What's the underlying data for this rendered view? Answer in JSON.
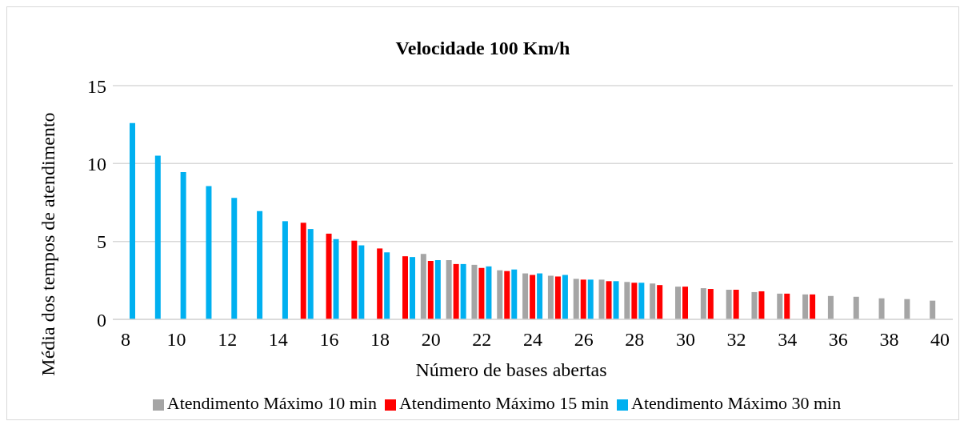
{
  "chart_data": {
    "type": "bar",
    "title": "Velocidade 100 Km/h",
    "xlabel": "Número de bases abertas",
    "ylabel": "Média dos tempos de atendimento",
    "categories": [
      "8",
      null,
      "10",
      null,
      "12",
      null,
      "14",
      null,
      "16",
      null,
      "18",
      null,
      "20",
      null,
      "22",
      null,
      "24",
      null,
      "26",
      null,
      "28",
      null,
      "30",
      null,
      "32",
      null,
      "34",
      null,
      "36",
      null,
      "38",
      null,
      "40"
    ],
    "series": [
      {
        "name": "Atendimento Máximo 10 min",
        "color": "#a5a5a5",
        "values": [
          null,
          null,
          null,
          null,
          null,
          null,
          null,
          null,
          null,
          null,
          null,
          null,
          4.2,
          3.8,
          3.5,
          3.15,
          2.95,
          2.8,
          2.6,
          2.55,
          2.4,
          2.3,
          2.1,
          2.0,
          1.9,
          1.75,
          1.65,
          1.6,
          1.5,
          1.45,
          1.35,
          1.3,
          1.2
        ]
      },
      {
        "name": "Atendimento Máximo 15 min",
        "color": "#ff0000",
        "values": [
          null,
          null,
          null,
          null,
          null,
          null,
          null,
          6.2,
          5.5,
          5.05,
          4.55,
          4.05,
          3.75,
          3.55,
          3.3,
          3.1,
          2.85,
          2.75,
          2.55,
          2.45,
          2.35,
          2.2,
          2.1,
          1.95,
          1.9,
          1.8,
          1.65,
          1.6,
          null,
          null,
          null,
          null,
          null
        ]
      },
      {
        "name": "Atendimento Máximo 30 min",
        "color": "#00b0f0",
        "values": [
          12.6,
          10.5,
          9.45,
          8.55,
          7.8,
          6.95,
          6.3,
          5.8,
          5.15,
          4.75,
          4.3,
          4.0,
          3.8,
          3.55,
          3.4,
          3.2,
          2.95,
          2.85,
          2.55,
          2.45,
          2.35,
          null,
          null,
          null,
          null,
          null,
          null,
          null,
          null,
          null,
          null,
          null,
          null
        ]
      }
    ],
    "ylim": [
      0,
      15
    ],
    "yticks": [
      0,
      5,
      10,
      15
    ],
    "grid": "y",
    "legend": "bottom"
  }
}
